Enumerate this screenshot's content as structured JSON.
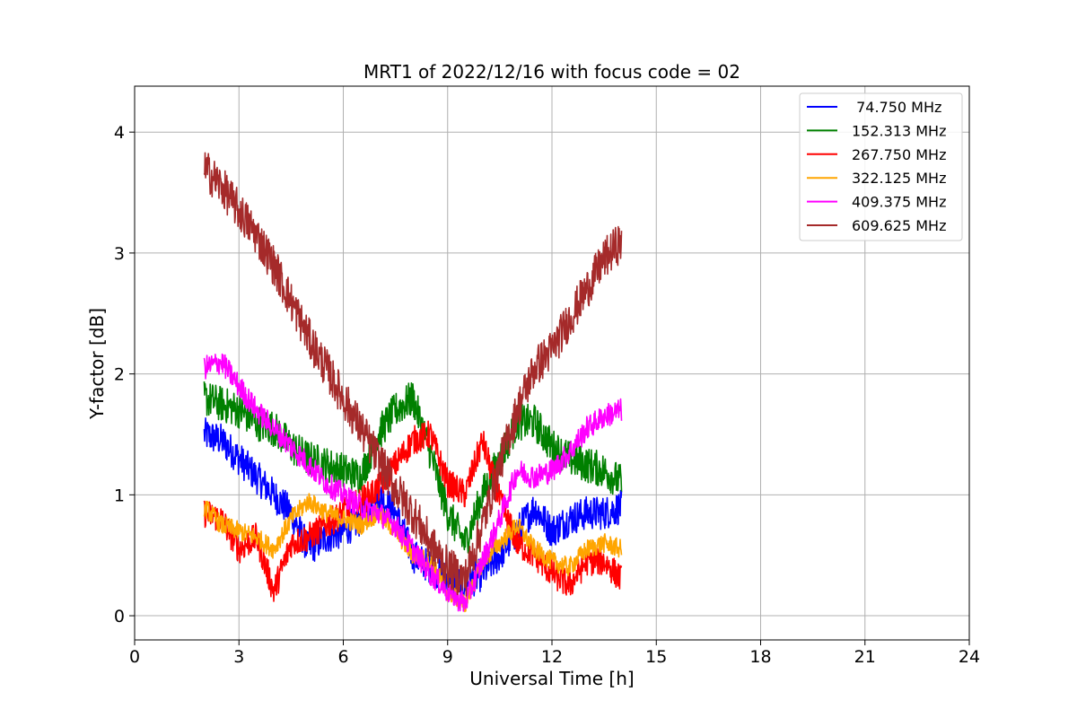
{
  "chart_data": {
    "type": "line",
    "title": "MRT1 of 2022/12/16 with focus code = 02",
    "xlabel": "Universal Time [h]",
    "ylabel": "Y-factor [dB]",
    "xlim": [
      0,
      24
    ],
    "ylim": [
      -0.2,
      4.38
    ],
    "xticks": [
      0,
      3,
      6,
      9,
      12,
      15,
      18,
      21,
      24
    ],
    "yticks": [
      0,
      1,
      2,
      3,
      4
    ],
    "grid": true,
    "legend_position": "top-right",
    "series": [
      {
        "name": "74.750 MHz",
        "legend_label": " 74.750 MHz",
        "color": "#0000ff",
        "x": [
          2.0,
          2.5,
          3.0,
          3.5,
          4.0,
          4.5,
          5.0,
          5.5,
          6.0,
          6.5,
          7.0,
          7.5,
          8.0,
          8.5,
          9.0,
          9.5,
          10.0,
          10.5,
          11.0,
          11.5,
          12.0,
          12.5,
          13.0,
          13.5,
          14.0
        ],
        "y": [
          1.5,
          1.45,
          1.3,
          1.15,
          1.0,
          0.85,
          0.55,
          0.65,
          0.7,
          0.8,
          1.0,
          0.85,
          0.5,
          0.4,
          0.3,
          0.25,
          0.35,
          0.5,
          0.7,
          0.9,
          0.7,
          0.8,
          0.85,
          0.85,
          0.9
        ],
        "noise": 0.14
      },
      {
        "name": "152.313 MHz",
        "legend_label": "152.313 MHz",
        "color": "#008000",
        "x": [
          2.0,
          2.5,
          3.0,
          3.5,
          4.0,
          4.5,
          5.0,
          5.5,
          6.0,
          6.5,
          7.0,
          7.5,
          8.0,
          8.5,
          9.0,
          9.5,
          10.0,
          10.5,
          11.0,
          11.5,
          12.0,
          12.5,
          13.0,
          13.5,
          14.0
        ],
        "y": [
          1.8,
          1.75,
          1.7,
          1.6,
          1.55,
          1.4,
          1.3,
          1.25,
          1.2,
          1.15,
          1.5,
          1.7,
          1.8,
          1.35,
          0.85,
          0.6,
          1.0,
          1.3,
          1.6,
          1.6,
          1.4,
          1.3,
          1.25,
          1.2,
          1.1
        ],
        "noise": 0.15
      },
      {
        "name": "267.750 MHz",
        "legend_label": "267.750 MHz",
        "color": "#ff0000",
        "x": [
          2.0,
          2.5,
          3.0,
          3.5,
          4.0,
          4.5,
          5.0,
          5.5,
          6.0,
          6.5,
          7.0,
          7.5,
          8.0,
          8.5,
          9.0,
          9.5,
          10.0,
          10.5,
          11.0,
          11.5,
          12.0,
          12.5,
          13.0,
          13.5,
          14.0
        ],
        "y": [
          0.85,
          0.8,
          0.55,
          0.65,
          0.2,
          0.6,
          0.65,
          0.75,
          0.85,
          0.95,
          1.05,
          1.25,
          1.45,
          1.5,
          1.1,
          1.0,
          1.45,
          0.95,
          0.6,
          0.5,
          0.35,
          0.25,
          0.45,
          0.45,
          0.3
        ],
        "noise": 0.12
      },
      {
        "name": "322.125 MHz",
        "legend_label": "322.125 MHz",
        "color": "#ffa500",
        "x": [
          2.0,
          2.5,
          3.0,
          3.5,
          4.0,
          4.5,
          5.0,
          5.5,
          6.0,
          6.5,
          7.0,
          7.5,
          8.0,
          8.5,
          9.0,
          9.5,
          10.0,
          10.5,
          11.0,
          11.5,
          12.0,
          12.5,
          13.0,
          13.5,
          14.0
        ],
        "y": [
          0.9,
          0.75,
          0.7,
          0.65,
          0.55,
          0.8,
          0.95,
          0.85,
          0.8,
          0.75,
          0.85,
          0.7,
          0.5,
          0.45,
          0.2,
          0.1,
          0.45,
          0.6,
          0.75,
          0.55,
          0.45,
          0.4,
          0.55,
          0.6,
          0.55
        ],
        "noise": 0.08
      },
      {
        "name": "409.375 MHz",
        "legend_label": "409.375 MHz",
        "color": "#ff00ff",
        "x": [
          2.0,
          2.5,
          3.0,
          3.5,
          4.0,
          4.5,
          5.0,
          5.5,
          6.0,
          6.5,
          7.0,
          7.5,
          8.0,
          8.5,
          9.0,
          9.5,
          10.0,
          10.5,
          11.0,
          11.5,
          12.0,
          12.5,
          13.0,
          13.5,
          14.0
        ],
        "y": [
          2.05,
          2.1,
          1.9,
          1.7,
          1.55,
          1.4,
          1.25,
          1.1,
          1.0,
          0.9,
          0.85,
          0.75,
          0.55,
          0.35,
          0.2,
          0.1,
          0.45,
          0.8,
          1.2,
          1.15,
          1.2,
          1.35,
          1.55,
          1.65,
          1.7
        ],
        "noise": 0.1
      },
      {
        "name": "609.625 MHz",
        "legend_label": "609.625 MHz",
        "color": "#a52a2a",
        "x": [
          2.0,
          2.5,
          3.0,
          3.5,
          4.0,
          4.5,
          5.0,
          5.5,
          6.0,
          6.5,
          7.0,
          7.5,
          8.0,
          8.5,
          9.0,
          9.5,
          10.0,
          10.5,
          11.0,
          11.5,
          12.0,
          12.5,
          13.0,
          13.5,
          14.0
        ],
        "y": [
          3.7,
          3.55,
          3.35,
          3.15,
          2.9,
          2.6,
          2.3,
          2.05,
          1.8,
          1.55,
          1.3,
          1.05,
          0.85,
          0.6,
          0.4,
          0.3,
          0.75,
          1.25,
          1.7,
          2.05,
          2.2,
          2.45,
          2.7,
          2.95,
          3.1
        ],
        "noise": 0.17
      }
    ]
  }
}
